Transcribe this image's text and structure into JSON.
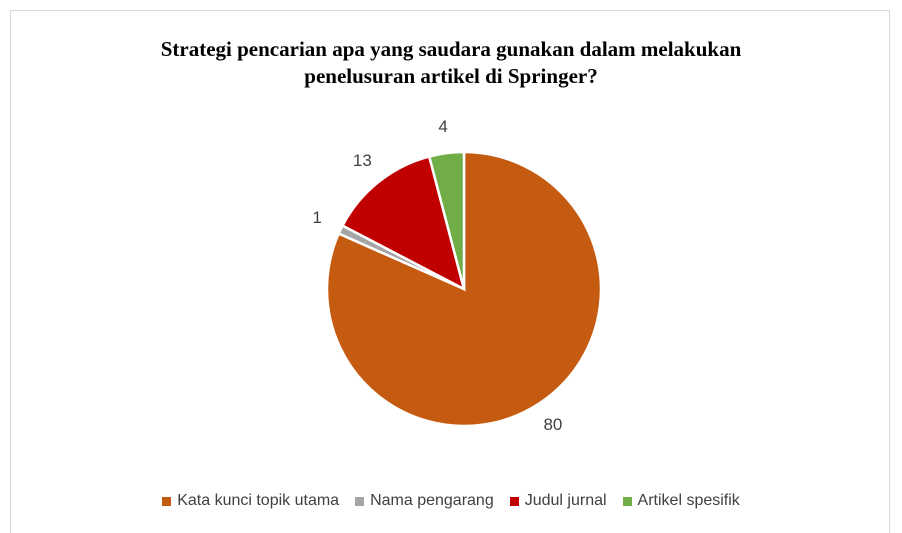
{
  "chart_data": {
    "type": "pie",
    "title": "Strategi pencarian apa yang saudara gunakan dalam melakukan penelusuran artikel di Springer?",
    "categories": [
      "Kata kunci topik utama",
      "Nama pengarang",
      "Judul jurnal",
      "Artikel spesifik"
    ],
    "values": [
      80,
      1,
      13,
      4
    ],
    "colors": [
      "#c55a11",
      "#a5a5a5",
      "#c00000",
      "#70ad47"
    ],
    "legend": "bottom"
  }
}
